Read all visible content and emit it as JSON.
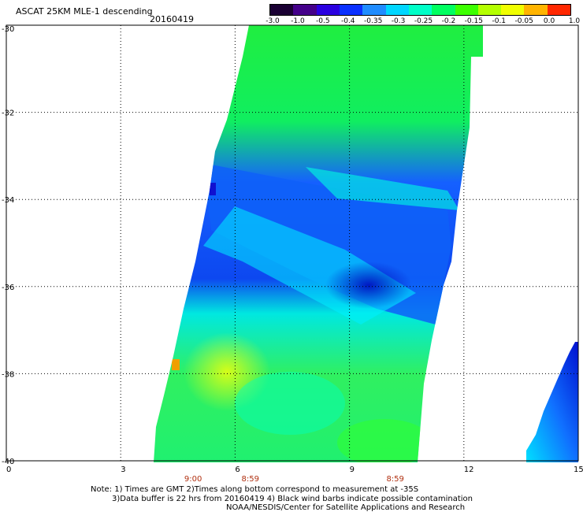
{
  "header": {
    "title": "ASCAT 25KM MLE-1 descending",
    "date": "20160419"
  },
  "colorbar": {
    "labels": [
      "-3.0",
      "-1.0",
      "-0.5",
      "-0.4",
      "-0.35",
      "-0.3",
      "-0.25",
      "-0.2",
      "-0.15",
      "-0.1",
      "-0.05",
      "0.0",
      "1.0"
    ],
    "colors": [
      "#1a0033",
      "#44008a",
      "#2a00e0",
      "#0a30ff",
      "#1f8cff",
      "#00d6ff",
      "#00ffc8",
      "#00ff60",
      "#3cff00",
      "#b4ff00",
      "#f0ff00",
      "#ffb400",
      "#ff2800"
    ]
  },
  "map": {
    "lon_ticks": [
      "0",
      "3",
      "6",
      "9",
      "12",
      "15"
    ],
    "lat_ticks": [
      "-30",
      "-32",
      "-34",
      "-36",
      "-38",
      "-40"
    ],
    "lon_range": [
      0,
      15
    ],
    "lat_range": [
      -40,
      -30
    ],
    "grid": "dotted",
    "swath_times": [
      {
        "label": "9:00",
        "lon": 4.9
      },
      {
        "label": "8:59",
        "lon": 6.4
      },
      {
        "label": "8:59",
        "lon": 10.2
      }
    ]
  },
  "notes": {
    "line1": "Note: 1) Times are GMT 2)Times along bottom correspond to measurement at -35S",
    "line2": "3)Data buffer is 22 hrs from 20160419 4) Black wind barbs indicate possible contamination",
    "line3": "NOAA/NESDIS/Center for Satellite Applications and Research"
  }
}
